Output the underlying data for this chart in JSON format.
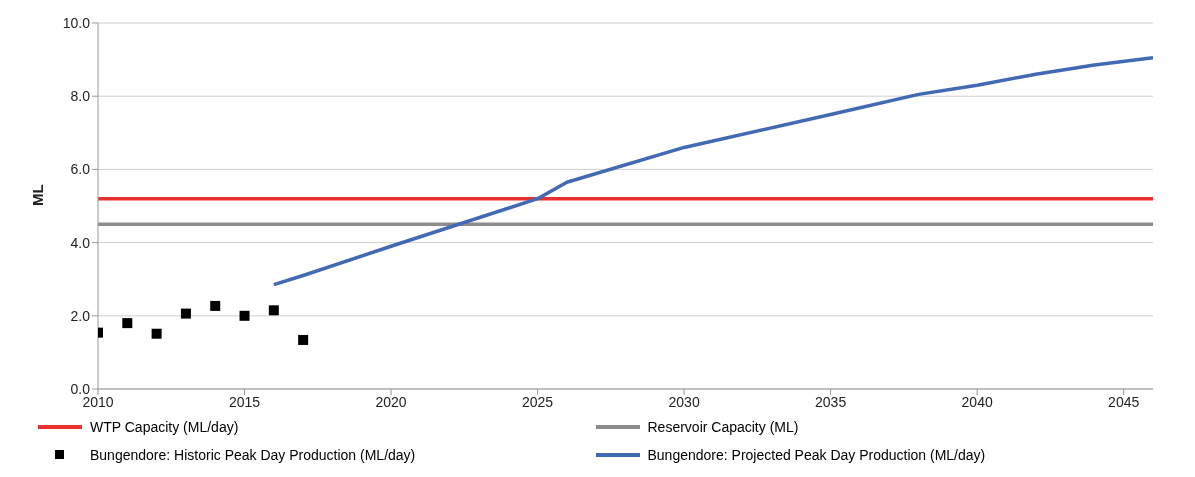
{
  "chart_data": {
    "type": "line",
    "ylabel": "ML",
    "xlim": [
      2010,
      2046
    ],
    "xticks": [
      2010,
      2015,
      2020,
      2025,
      2030,
      2035,
      2040,
      2045
    ],
    "ylim": [
      0,
      10
    ],
    "yticks": [
      {
        "value": 0,
        "label": "0.0"
      },
      {
        "value": 2,
        "label": "2.0"
      },
      {
        "value": 4,
        "label": "4.0"
      },
      {
        "value": 6,
        "label": "6.0"
      },
      {
        "value": 8,
        "label": "8.0"
      },
      {
        "value": 10,
        "label": "10.0"
      }
    ],
    "grid": "y",
    "legend": "bottom",
    "series": [
      {
        "name": "WTP Capacity (ML/day)",
        "color": "#e8312f",
        "x": [
          2010,
          2046
        ],
        "values": [
          5.2,
          5.2
        ]
      },
      {
        "name": "Reservoir Capacity (ML)",
        "color": "#8c8c8c",
        "x": [
          2010,
          2046
        ],
        "values": [
          4.5,
          4.5
        ]
      },
      {
        "name": "Bungendore: Historic Peak Day Production (ML/day)",
        "type": "scatter",
        "marker": "square",
        "color": "#000000",
        "x": [
          2010,
          2011,
          2012,
          2013,
          2014,
          2015,
          2016,
          2017
        ],
        "values": [
          1.54,
          1.8,
          1.51,
          2.06,
          2.27,
          2.0,
          2.15,
          1.34
        ]
      },
      {
        "name": "Bungendore: Projected Peak Day Production (ML/day)",
        "color": "#4169b4",
        "x": [
          2016,
          2017,
          2020,
          2025,
          2026,
          2030,
          2035,
          2038,
          2040,
          2042,
          2044,
          2046
        ],
        "values": [
          2.85,
          3.1,
          3.9,
          5.2,
          5.65,
          6.6,
          7.5,
          8.05,
          8.3,
          8.6,
          8.85,
          9.05
        ]
      }
    ]
  }
}
